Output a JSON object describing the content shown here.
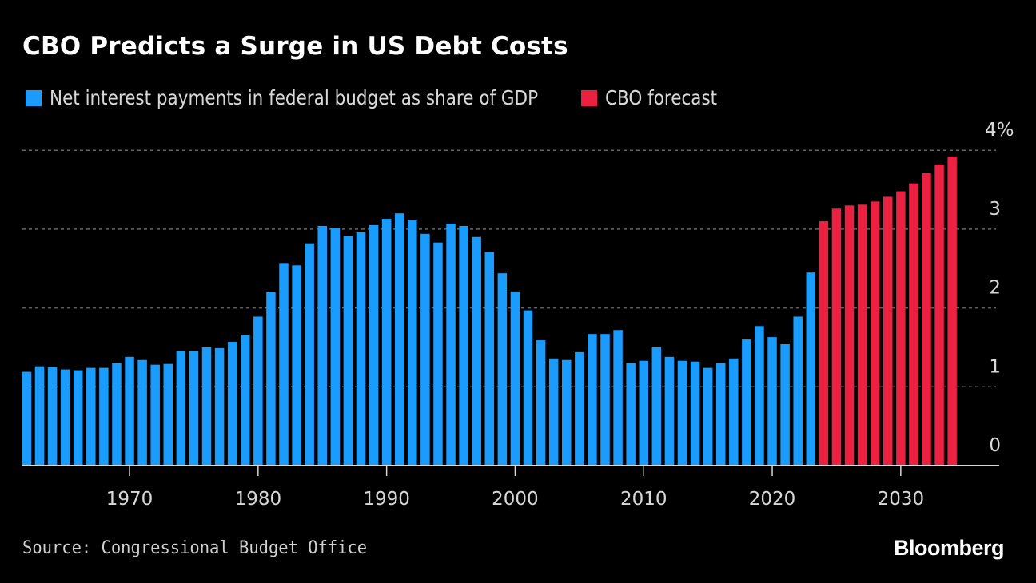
{
  "chart_data": {
    "type": "bar",
    "title": "CBO Predicts a Surge in US Debt Costs",
    "xlabel": "",
    "ylabel": "",
    "ylim": [
      0,
      4
    ],
    "yticks": [
      0,
      1,
      2,
      3,
      4
    ],
    "ytick_labels": [
      "0",
      "1",
      "2",
      "3",
      "4%"
    ],
    "xticks": [
      1970,
      1980,
      1990,
      2000,
      2010,
      2020,
      2030
    ],
    "xtick_labels": [
      "1970",
      "1980",
      "1990",
      "2000",
      "2010",
      "2020",
      "2030"
    ],
    "xlim": [
      1962,
      2034
    ],
    "grid": true,
    "legend_position": "top-left",
    "colors": {
      "historical": "#1a9cff",
      "forecast": "#ec2040",
      "gridline": "#666666",
      "axis": "#d8d8d8"
    },
    "series": [
      {
        "name": "Net interest payments in federal budget as share of GDP",
        "color": "#1a9cff",
        "x": [
          1962,
          1963,
          1964,
          1965,
          1966,
          1967,
          1968,
          1969,
          1970,
          1971,
          1972,
          1973,
          1974,
          1975,
          1976,
          1977,
          1978,
          1979,
          1980,
          1981,
          1982,
          1983,
          1984,
          1985,
          1986,
          1987,
          1988,
          1989,
          1990,
          1991,
          1992,
          1993,
          1994,
          1995,
          1996,
          1997,
          1998,
          1999,
          2000,
          2001,
          2002,
          2003,
          2004,
          2005,
          2006,
          2007,
          2008,
          2009,
          2010,
          2011,
          2012,
          2013,
          2014,
          2015,
          2016,
          2017,
          2018,
          2019,
          2020,
          2021,
          2022,
          2023
        ],
        "values": [
          1.19,
          1.26,
          1.25,
          1.22,
          1.21,
          1.24,
          1.24,
          1.3,
          1.38,
          1.34,
          1.28,
          1.29,
          1.45,
          1.45,
          1.5,
          1.49,
          1.57,
          1.66,
          1.89,
          2.2,
          2.57,
          2.54,
          2.82,
          3.04,
          3.01,
          2.91,
          2.96,
          3.05,
          3.13,
          3.2,
          3.11,
          2.94,
          2.83,
          3.07,
          3.04,
          2.9,
          2.71,
          2.44,
          2.21,
          1.97,
          1.59,
          1.36,
          1.34,
          1.44,
          1.67,
          1.67,
          1.72,
          1.3,
          1.33,
          1.5,
          1.38,
          1.33,
          1.32,
          1.24,
          1.3,
          1.36,
          1.6,
          1.77,
          1.63,
          1.54,
          1.89,
          2.45
        ]
      },
      {
        "name": "CBO forecast",
        "color": "#ec2040",
        "x": [
          2024,
          2025,
          2026,
          2027,
          2028,
          2029,
          2030,
          2031,
          2032,
          2033,
          2034
        ],
        "values": [
          3.1,
          3.26,
          3.3,
          3.31,
          3.35,
          3.41,
          3.48,
          3.58,
          3.71,
          3.82,
          3.92
        ]
      }
    ]
  },
  "header": {
    "title": "CBO Predicts a Surge in US Debt Costs"
  },
  "legend": [
    {
      "label": "Net interest payments in federal budget as share of GDP",
      "color": "#1a9cff"
    },
    {
      "label": "CBO forecast",
      "color": "#ec2040"
    }
  ],
  "footer": {
    "source": "Source: Congressional Budget Office",
    "brand": "Bloomberg"
  }
}
